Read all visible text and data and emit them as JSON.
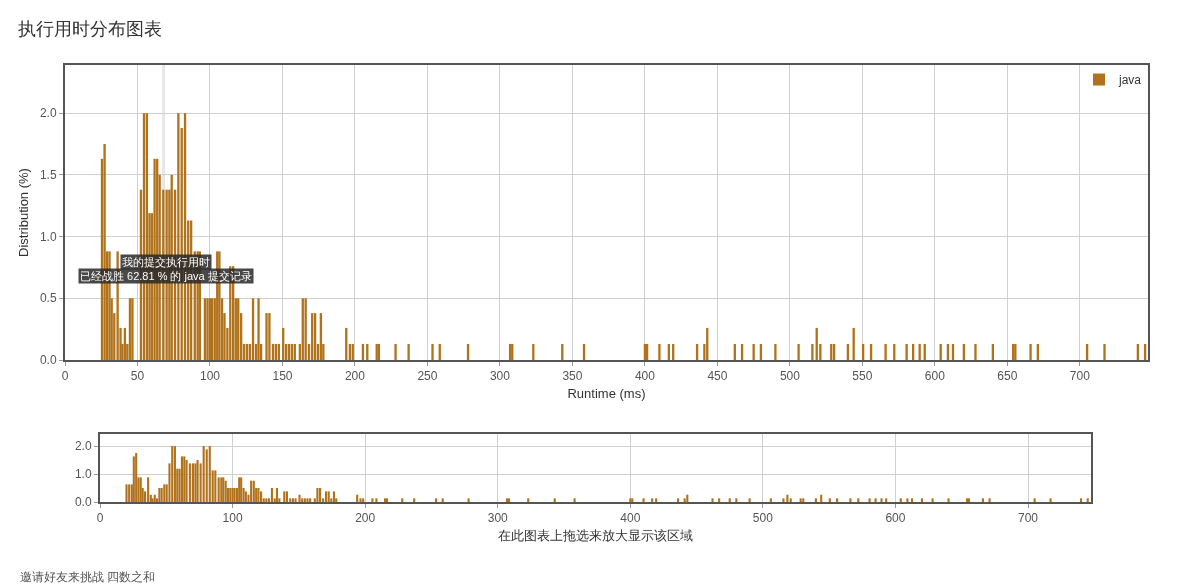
{
  "chart_data": [
    {
      "type": "bar",
      "title": "执行用时分布图表",
      "xlabel": "Runtime (ms)",
      "ylabel": "Distribution (%)",
      "x": [
        25.5,
        27.3,
        29,
        30.7,
        32.2,
        34,
        36.3,
        38.3,
        39.6,
        41.3,
        43,
        44.8,
        46.5,
        52.4,
        54.5,
        56.5,
        58.3,
        60,
        61.8,
        63.6,
        65.3,
        67.8,
        70.1,
        72,
        73.6,
        75.9,
        78.2,
        80.5,
        82.8,
        85,
        87,
        89.5,
        91.5,
        93,
        96.5,
        98.3,
        100,
        101.5,
        103.3,
        105,
        106.5,
        108.3,
        110,
        112,
        114,
        116,
        117.8,
        119.5,
        121.5,
        123.5,
        125.5,
        127.5,
        129.7,
        131.8,
        133.5,
        135.3,
        139,
        141,
        143.5,
        145.5,
        147.5,
        150.5,
        152.5,
        154.5,
        156.5,
        158.5,
        162,
        164,
        166,
        168.3,
        170.5,
        172.5,
        174.5,
        176.5,
        178.2,
        194,
        196.5,
        198.5,
        205.5,
        208.5,
        215,
        216.5,
        228,
        237,
        253.5,
        258.5,
        278,
        307,
        308.5,
        323,
        343,
        358,
        400,
        401.5,
        410,
        416.5,
        419.5,
        436,
        441,
        443,
        462,
        467,
        475,
        480,
        490,
        506,
        515.5,
        518.5,
        521,
        528.5,
        530.5,
        540,
        544,
        550.5,
        556,
        566,
        572,
        580.5,
        585,
        589.5,
        593,
        604,
        609,
        612.5,
        620,
        628,
        640,
        654,
        655.5,
        666,
        671,
        705,
        717,
        740,
        745
      ],
      "series": [
        {
          "name": "java",
          "color": "#b0731c",
          "values": [
            1.63,
            1.75,
            0.88,
            0.88,
            0.5,
            0.38,
            0.88,
            0.26,
            0.13,
            0.26,
            0.13,
            0.5,
            0.5,
            1.38,
            2.0,
            2.0,
            1.19,
            1.19,
            1.63,
            1.63,
            1.5,
            1.38,
            1.38,
            1.38,
            1.5,
            1.38,
            2.0,
            1.88,
            2.0,
            1.13,
            1.13,
            0.88,
            0.88,
            0.88,
            0.5,
            0.5,
            0.5,
            0.5,
            0.5,
            0.88,
            0.88,
            0.5,
            0.38,
            0.26,
            0.76,
            0.76,
            0.5,
            0.5,
            0.38,
            0.13,
            0.13,
            0.13,
            0.5,
            0.13,
            0.5,
            0.13,
            0.38,
            0.38,
            0.13,
            0.13,
            0.13,
            0.26,
            0.13,
            0.13,
            0.13,
            0.13,
            0.13,
            0.5,
            0.5,
            0.13,
            0.38,
            0.38,
            0.13,
            0.38,
            0.13,
            0.26,
            0.13,
            0.13,
            0.13,
            0.13,
            0.13,
            0.13,
            0.13,
            0.13,
            0.13,
            0.13,
            0.13,
            0.13,
            0.13,
            0.13,
            0.13,
            0.13,
            0.13,
            0.13,
            0.13,
            0.13,
            0.13,
            0.13,
            0.13,
            0.26,
            0.13,
            0.13,
            0.13,
            0.13,
            0.13,
            0.13,
            0.13,
            0.26,
            0.13,
            0.13,
            0.13,
            0.13,
            0.26,
            0.13,
            0.13,
            0.13,
            0.13,
            0.13,
            0.13,
            0.13,
            0.13,
            0.13,
            0.13,
            0.13,
            0.13,
            0.13,
            0.13,
            0.13,
            0.13,
            0.13,
            0.13,
            0.13,
            0.13,
            0.13,
            0.13
          ]
        }
      ],
      "xlim": [
        0,
        747
      ],
      "xticks": [
        0,
        50,
        100,
        150,
        200,
        250,
        300,
        350,
        400,
        450,
        500,
        550,
        600,
        650,
        700
      ],
      "ylim": [
        0,
        2.39
      ],
      "yticks": [
        {
          "value": 0,
          "label": "0.0"
        },
        {
          "value": 0.5,
          "label": "0.5"
        },
        {
          "value": 1,
          "label": "1.0"
        },
        {
          "value": 1.5,
          "label": "1.5"
        },
        {
          "value": 2,
          "label": "2.0"
        }
      ],
      "grid": true,
      "legend": "top right",
      "bands": [
        {
          "axis": "x",
          "from": 67,
          "to": 69,
          "color": "#e6e6e6"
        }
      ],
      "annotations": [
        "我的提交执行用时",
        "已经战胜 62.81 % 的 java 提交记录"
      ]
    },
    {
      "type": "bar",
      "xlabel": "在此图表上拖选来放大显示该区域",
      "x": [
        20,
        22,
        24,
        25.5,
        27.3,
        29,
        30.7,
        32.2,
        34,
        36.3,
        38.3,
        39.6,
        41.3,
        43,
        44.8,
        46.5,
        48.5,
        50.3,
        52.4,
        54.5,
        56.5,
        58.3,
        60,
        61.8,
        63.6,
        65.3,
        67.8,
        70.1,
        72,
        73.6,
        75.9,
        78.2,
        80.5,
        82.8,
        85,
        87,
        89.5,
        91.5,
        93,
        94.8,
        96.5,
        98.3,
        100,
        101.5,
        103.3,
        105,
        106.5,
        108.3,
        110,
        112,
        114,
        116,
        117.8,
        119.5,
        121.5,
        123.5,
        125.5,
        127.5,
        129.7,
        131.8,
        133.5,
        135.3,
        139,
        141,
        143.5,
        145.5,
        147.5,
        150.5,
        152.5,
        154.5,
        156.5,
        158.5,
        162,
        164,
        166,
        168.3,
        170.5,
        172.5,
        174.5,
        176.5,
        178.2,
        194,
        196.5,
        198.5,
        205.5,
        208.5,
        215,
        216.5,
        228,
        237,
        253.5,
        258.5,
        278,
        307,
        308.5,
        323,
        343,
        358,
        400,
        401.5,
        410,
        416.5,
        419.5,
        436,
        441,
        443,
        462,
        467,
        475,
        480,
        490,
        506,
        515.5,
        518.5,
        521,
        528.5,
        530.5,
        540,
        544,
        550.5,
        556,
        566,
        572,
        580.5,
        585,
        589.5,
        593,
        604,
        609,
        612.5,
        620,
        628,
        640,
        654,
        655.5,
        666,
        671,
        705,
        717,
        740,
        745
      ],
      "series": [
        {
          "color": "#b0731c",
          "values": [
            0.63,
            0.63,
            0.63,
            1.63,
            1.75,
            0.88,
            0.88,
            0.5,
            0.38,
            0.88,
            0.26,
            0.13,
            0.26,
            0.13,
            0.5,
            0.5,
            0.63,
            0.63,
            1.38,
            2.0,
            2.0,
            1.19,
            1.19,
            1.63,
            1.63,
            1.5,
            1.38,
            1.38,
            1.38,
            1.5,
            1.38,
            2.0,
            1.88,
            2.0,
            1.13,
            1.13,
            0.88,
            0.88,
            0.88,
            0.76,
            0.5,
            0.5,
            0.5,
            0.5,
            0.5,
            0.88,
            0.88,
            0.5,
            0.38,
            0.26,
            0.76,
            0.76,
            0.5,
            0.5,
            0.38,
            0.13,
            0.13,
            0.13,
            0.5,
            0.13,
            0.5,
            0.13,
            0.38,
            0.38,
            0.13,
            0.13,
            0.13,
            0.26,
            0.13,
            0.13,
            0.13,
            0.13,
            0.13,
            0.5,
            0.5,
            0.13,
            0.38,
            0.38,
            0.13,
            0.38,
            0.13,
            0.26,
            0.13,
            0.13,
            0.13,
            0.13,
            0.13,
            0.13,
            0.13,
            0.13,
            0.13,
            0.13,
            0.13,
            0.13,
            0.13,
            0.13,
            0.13,
            0.13,
            0.13,
            0.13,
            0.13,
            0.13,
            0.13,
            0.13,
            0.13,
            0.26,
            0.13,
            0.13,
            0.13,
            0.13,
            0.13,
            0.13,
            0.13,
            0.26,
            0.13,
            0.13,
            0.13,
            0.13,
            0.26,
            0.13,
            0.13,
            0.13,
            0.13,
            0.13,
            0.13,
            0.13,
            0.13,
            0.13,
            0.13,
            0.13,
            0.13,
            0.13,
            0.13,
            0.13,
            0.13,
            0.13,
            0.13,
            0.13,
            0.13,
            0.13,
            0.13
          ]
        }
      ],
      "xlim": [
        0,
        747.5
      ],
      "xticks": [
        0,
        100,
        200,
        300,
        400,
        500,
        600,
        700
      ],
      "ylim": [
        0,
        2.43
      ],
      "yticks": [
        {
          "value": 0,
          "label": "0.0"
        },
        {
          "value": 1,
          "label": "1.0"
        },
        {
          "value": 2,
          "label": "2.0"
        }
      ],
      "grid": true,
      "annotations": [
        "邀请好友来挑战 四数之和"
      ]
    }
  ]
}
